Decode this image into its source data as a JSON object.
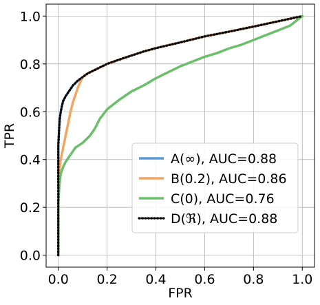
{
  "chart_data": {
    "type": "line",
    "title": "",
    "xlabel": "FPR",
    "ylabel": "TPR",
    "xlim": [
      -0.05,
      1.05
    ],
    "ylim": [
      -0.05,
      1.05
    ],
    "xticks": [
      0.0,
      0.2,
      0.4,
      0.6,
      0.8,
      1.0
    ],
    "yticks": [
      0.0,
      0.2,
      0.4,
      0.6,
      0.8,
      1.0
    ],
    "xtick_labels": [
      "0.0",
      "0.2",
      "0.4",
      "0.6",
      "0.8",
      "1.0"
    ],
    "ytick_labels": [
      "0.0",
      "0.2",
      "0.4",
      "0.6",
      "0.8",
      "1.0"
    ],
    "grid": true,
    "legend_position": "lower-right",
    "series": [
      {
        "name": "A(∞), AUC=0.88",
        "color": "#5b9bd5",
        "style": "solid",
        "x": [
          0.0,
          0.0,
          0.002,
          0.004,
          0.006,
          0.01,
          0.015,
          0.02,
          0.03,
          0.04,
          0.05,
          0.06,
          0.08,
          0.1,
          0.12,
          0.15,
          0.2,
          0.25,
          0.3,
          0.35,
          0.4,
          0.5,
          0.6,
          0.7,
          0.8,
          0.9,
          1.0
        ],
        "y": [
          0.0,
          0.46,
          0.5,
          0.54,
          0.57,
          0.6,
          0.625,
          0.645,
          0.665,
          0.68,
          0.695,
          0.71,
          0.73,
          0.745,
          0.76,
          0.775,
          0.8,
          0.818,
          0.835,
          0.852,
          0.866,
          0.89,
          0.915,
          0.935,
          0.956,
          0.978,
          1.0
        ]
      },
      {
        "name": "B(0.2), AUC=0.86",
        "color": "#f5a462",
        "style": "solid",
        "x": [
          0.0,
          0.0,
          0.005,
          0.01,
          0.02,
          0.03,
          0.04,
          0.05,
          0.06,
          0.07,
          0.08,
          0.09,
          0.1,
          0.12,
          0.15,
          0.2,
          0.25,
          0.3,
          0.35,
          0.4,
          0.5,
          0.6,
          0.7,
          0.8,
          0.9,
          1.0
        ],
        "y": [
          0.0,
          0.28,
          0.36,
          0.4,
          0.45,
          0.5,
          0.55,
          0.6,
          0.64,
          0.67,
          0.7,
          0.725,
          0.745,
          0.76,
          0.775,
          0.8,
          0.818,
          0.835,
          0.852,
          0.866,
          0.89,
          0.915,
          0.935,
          0.956,
          0.978,
          1.0
        ]
      },
      {
        "name": "C(0), AUC=0.76",
        "color": "#6bbf6b",
        "style": "solid",
        "x": [
          0.0,
          0.0,
          0.005,
          0.01,
          0.02,
          0.03,
          0.05,
          0.07,
          0.1,
          0.13,
          0.15,
          0.17,
          0.2,
          0.25,
          0.3,
          0.35,
          0.4,
          0.45,
          0.5,
          0.55,
          0.6,
          0.65,
          0.7,
          0.75,
          0.8,
          0.85,
          0.9,
          0.95,
          1.0
        ],
        "y": [
          0.0,
          0.22,
          0.3,
          0.34,
          0.37,
          0.39,
          0.42,
          0.45,
          0.47,
          0.5,
          0.53,
          0.57,
          0.61,
          0.65,
          0.685,
          0.71,
          0.74,
          0.765,
          0.79,
          0.81,
          0.83,
          0.845,
          0.865,
          0.88,
          0.9,
          0.92,
          0.94,
          0.96,
          1.0
        ]
      },
      {
        "name": "D(ℜ), AUC=0.88",
        "color": "#000000",
        "style": "dotted",
        "x": [
          0.0,
          0.0,
          0.002,
          0.004,
          0.006,
          0.01,
          0.015,
          0.02,
          0.03,
          0.04,
          0.05,
          0.06,
          0.08,
          0.1,
          0.12,
          0.15,
          0.2,
          0.25,
          0.3,
          0.35,
          0.4,
          0.5,
          0.6,
          0.7,
          0.8,
          0.9,
          1.0
        ],
        "y": [
          0.0,
          0.46,
          0.5,
          0.54,
          0.57,
          0.6,
          0.625,
          0.645,
          0.665,
          0.68,
          0.695,
          0.71,
          0.73,
          0.745,
          0.76,
          0.775,
          0.8,
          0.818,
          0.835,
          0.852,
          0.866,
          0.89,
          0.915,
          0.935,
          0.956,
          0.978,
          1.0
        ]
      }
    ]
  }
}
